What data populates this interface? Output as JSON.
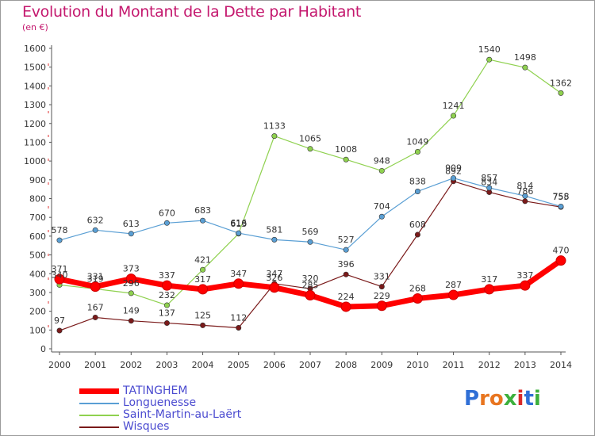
{
  "title": "Evolution du Montant de la Dette par Habitant",
  "unit": "(en €)",
  "logo": "Proxiti",
  "chart_data": {
    "type": "line",
    "title": "Evolution du Montant de la Dette par Habitant",
    "ylabel": "(en €)",
    "x": [
      2000,
      2001,
      2002,
      2003,
      2004,
      2005,
      2006,
      2007,
      2008,
      2009,
      2010,
      2011,
      2012,
      2013,
      2014
    ],
    "ylim": [
      0,
      1600
    ],
    "yticks": [
      0,
      100,
      200,
      300,
      400,
      500,
      600,
      700,
      800,
      900,
      1000,
      1100,
      1200,
      1300,
      1400,
      1500,
      1600
    ],
    "grid": false,
    "legend": "bottom-left",
    "series": [
      {
        "name": "TATINGHEM",
        "color": "#ff0000",
        "values": [
          371,
          331,
          373,
          337,
          317,
          347,
          326,
          285,
          224,
          229,
          268,
          287,
          317,
          337,
          470
        ]
      },
      {
        "name": "Longuenesse",
        "color": "#5a9fd4",
        "values": [
          578,
          632,
          613,
          670,
          683,
          616,
          581,
          569,
          527,
          704,
          838,
          909,
          857,
          814,
          758
        ]
      },
      {
        "name": "Saint-Martin-au-Laërt",
        "color": "#8fd14f",
        "values": [
          340,
          319,
          296,
          232,
          421,
          613,
          1133,
          1065,
          1008,
          948,
          1049,
          1241,
          1540,
          1498,
          1362
        ]
      },
      {
        "name": "Wisques",
        "color": "#7a1a1a",
        "values": [
          97,
          167,
          149,
          137,
          125,
          112,
          347,
          320,
          396,
          331,
          608,
          892,
          834,
          786,
          755
        ]
      }
    ]
  }
}
